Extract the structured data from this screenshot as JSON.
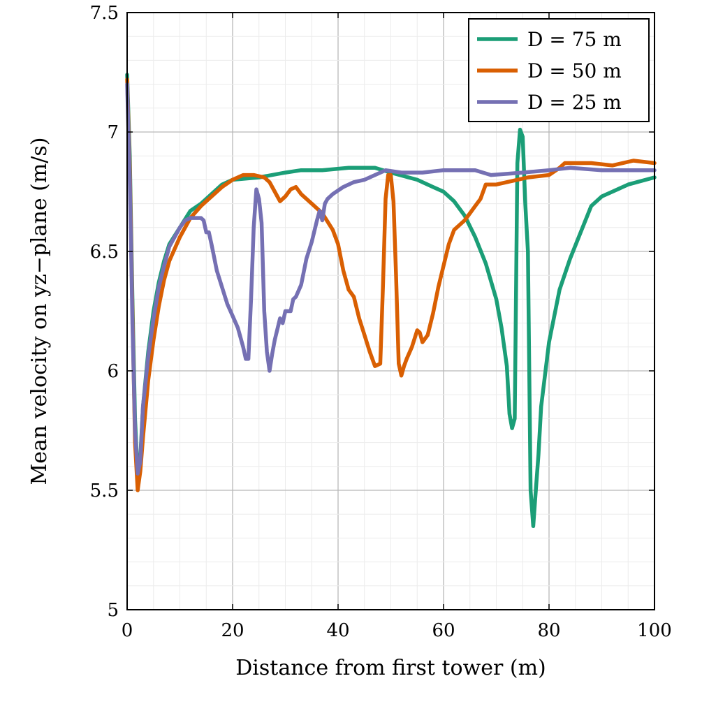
{
  "chart_data": {
    "type": "line",
    "title": "",
    "xlabel": "Distance from first tower (m)",
    "ylabel": "Mean velocity on yz−plane (m/s)",
    "xlim": [
      0,
      100
    ],
    "ylim": [
      5,
      7.5
    ],
    "xticks": [
      0,
      20,
      40,
      60,
      80,
      100
    ],
    "xtick_labels": [
      "0",
      "20",
      "40",
      "60",
      "80",
      "100"
    ],
    "yticks": [
      5,
      5.5,
      6,
      6.5,
      7,
      7.5
    ],
    "ytick_labels": [
      "5",
      "5.5",
      "6",
      "6.5",
      "7",
      "7.5"
    ],
    "grid": true,
    "legend_position": "top-right",
    "series": [
      {
        "name": "D = 75 m",
        "color": "#1b9e77",
        "points": [
          [
            0,
            7.24
          ],
          [
            0.5,
            6.9
          ],
          [
            1,
            6.3
          ],
          [
            1.5,
            5.8
          ],
          [
            2,
            5.56
          ],
          [
            2.5,
            5.64
          ],
          [
            3,
            5.85
          ],
          [
            4,
            6.08
          ],
          [
            5,
            6.25
          ],
          [
            6,
            6.37
          ],
          [
            7,
            6.46
          ],
          [
            8,
            6.53
          ],
          [
            10,
            6.6
          ],
          [
            12,
            6.67
          ],
          [
            14,
            6.7
          ],
          [
            16,
            6.74
          ],
          [
            18,
            6.78
          ],
          [
            20,
            6.8
          ],
          [
            25,
            6.81
          ],
          [
            30,
            6.83
          ],
          [
            33,
            6.84
          ],
          [
            37,
            6.84
          ],
          [
            42,
            6.85
          ],
          [
            47,
            6.85
          ],
          [
            50,
            6.83
          ],
          [
            55,
            6.8
          ],
          [
            58,
            6.77
          ],
          [
            60,
            6.75
          ],
          [
            62,
            6.71
          ],
          [
            64,
            6.65
          ],
          [
            66,
            6.56
          ],
          [
            68,
            6.45
          ],
          [
            70,
            6.3
          ],
          [
            71,
            6.18
          ],
          [
            72,
            6.02
          ],
          [
            72.5,
            5.82
          ],
          [
            73,
            5.76
          ],
          [
            73.5,
            5.8
          ],
          [
            74,
            6.87
          ],
          [
            74.5,
            7.01
          ],
          [
            75,
            6.98
          ],
          [
            75.5,
            6.7
          ],
          [
            76,
            6.5
          ],
          [
            76.5,
            5.5
          ],
          [
            77,
            5.35
          ],
          [
            77.5,
            5.5
          ],
          [
            78,
            5.65
          ],
          [
            78.5,
            5.85
          ],
          [
            80,
            6.12
          ],
          [
            82,
            6.34
          ],
          [
            84,
            6.47
          ],
          [
            86,
            6.58
          ],
          [
            88,
            6.69
          ],
          [
            90,
            6.73
          ],
          [
            92,
            6.75
          ],
          [
            95,
            6.78
          ],
          [
            100,
            6.81
          ]
        ]
      },
      {
        "name": "D = 50 m",
        "color": "#d95f02",
        "points": [
          [
            0,
            7.22
          ],
          [
            0.5,
            6.85
          ],
          [
            1,
            6.25
          ],
          [
            1.5,
            5.7
          ],
          [
            2,
            5.5
          ],
          [
            2.5,
            5.58
          ],
          [
            3,
            5.72
          ],
          [
            4,
            5.96
          ],
          [
            5,
            6.13
          ],
          [
            6,
            6.27
          ],
          [
            7,
            6.38
          ],
          [
            8,
            6.46
          ],
          [
            10,
            6.56
          ],
          [
            12,
            6.64
          ],
          [
            14,
            6.69
          ],
          [
            16,
            6.73
          ],
          [
            18,
            6.77
          ],
          [
            20,
            6.8
          ],
          [
            22,
            6.82
          ],
          [
            24,
            6.82
          ],
          [
            26,
            6.81
          ],
          [
            27,
            6.79
          ],
          [
            28,
            6.75
          ],
          [
            29,
            6.71
          ],
          [
            30,
            6.73
          ],
          [
            31,
            6.76
          ],
          [
            32,
            6.77
          ],
          [
            33,
            6.74
          ],
          [
            35,
            6.7
          ],
          [
            37,
            6.66
          ],
          [
            39,
            6.59
          ],
          [
            40,
            6.53
          ],
          [
            41,
            6.42
          ],
          [
            42,
            6.34
          ],
          [
            43,
            6.31
          ],
          [
            44,
            6.22
          ],
          [
            45,
            6.15
          ],
          [
            46,
            6.08
          ],
          [
            47,
            6.02
          ],
          [
            48,
            6.03
          ],
          [
            48.5,
            6.35
          ],
          [
            49,
            6.72
          ],
          [
            49.5,
            6.82
          ],
          [
            50,
            6.82
          ],
          [
            50.5,
            6.71
          ],
          [
            51,
            6.4
          ],
          [
            51.5,
            6.03
          ],
          [
            52,
            5.98
          ],
          [
            52.5,
            6.02
          ],
          [
            53,
            6.05
          ],
          [
            54,
            6.1
          ],
          [
            55,
            6.17
          ],
          [
            55.5,
            6.16
          ],
          [
            56,
            6.12
          ],
          [
            57,
            6.15
          ],
          [
            58,
            6.24
          ],
          [
            59,
            6.35
          ],
          [
            60,
            6.44
          ],
          [
            61,
            6.53
          ],
          [
            62,
            6.59
          ],
          [
            63,
            6.61
          ],
          [
            64,
            6.63
          ],
          [
            65,
            6.66
          ],
          [
            66,
            6.69
          ],
          [
            67,
            6.72
          ],
          [
            68,
            6.78
          ],
          [
            70,
            6.78
          ],
          [
            72,
            6.79
          ],
          [
            74,
            6.8
          ],
          [
            76,
            6.81
          ],
          [
            80,
            6.82
          ],
          [
            82,
            6.85
          ],
          [
            83,
            6.87
          ],
          [
            88,
            6.87
          ],
          [
            92,
            6.86
          ],
          [
            96,
            6.88
          ],
          [
            100,
            6.87
          ]
        ]
      },
      {
        "name": "D = 25 m",
        "color": "#7570b3",
        "points": [
          [
            0,
            7.2
          ],
          [
            0.5,
            6.8
          ],
          [
            1,
            6.2
          ],
          [
            1.5,
            5.75
          ],
          [
            2,
            5.57
          ],
          [
            2.5,
            5.62
          ],
          [
            3,
            5.85
          ],
          [
            4,
            6.06
          ],
          [
            5,
            6.22
          ],
          [
            6,
            6.35
          ],
          [
            7,
            6.44
          ],
          [
            8,
            6.52
          ],
          [
            10,
            6.6
          ],
          [
            11,
            6.63
          ],
          [
            12,
            6.64
          ],
          [
            14,
            6.64
          ],
          [
            14.5,
            6.63
          ],
          [
            15,
            6.58
          ],
          [
            15.5,
            6.58
          ],
          [
            16,
            6.53
          ],
          [
            17,
            6.42
          ],
          [
            18,
            6.35
          ],
          [
            19,
            6.28
          ],
          [
            20,
            6.23
          ],
          [
            21,
            6.18
          ],
          [
            22,
            6.1
          ],
          [
            22.5,
            6.05
          ],
          [
            23,
            6.05
          ],
          [
            23.5,
            6.3
          ],
          [
            24,
            6.6
          ],
          [
            24.5,
            6.76
          ],
          [
            25,
            6.72
          ],
          [
            25.5,
            6.62
          ],
          [
            26,
            6.25
          ],
          [
            26.5,
            6.08
          ],
          [
            27,
            6.0
          ],
          [
            27.5,
            6.07
          ],
          [
            28,
            6.13
          ],
          [
            29,
            6.22
          ],
          [
            29.5,
            6.2
          ],
          [
            30,
            6.25
          ],
          [
            31,
            6.25
          ],
          [
            31.5,
            6.3
          ],
          [
            32,
            6.31
          ],
          [
            33,
            6.36
          ],
          [
            34,
            6.47
          ],
          [
            35,
            6.54
          ],
          [
            36,
            6.63
          ],
          [
            36.5,
            6.67
          ],
          [
            37,
            6.63
          ],
          [
            37.5,
            6.7
          ],
          [
            38,
            6.72
          ],
          [
            39,
            6.74
          ],
          [
            41,
            6.77
          ],
          [
            43,
            6.79
          ],
          [
            45,
            6.8
          ],
          [
            47,
            6.82
          ],
          [
            49,
            6.84
          ],
          [
            52,
            6.83
          ],
          [
            56,
            6.83
          ],
          [
            60,
            6.84
          ],
          [
            66,
            6.84
          ],
          [
            69,
            6.82
          ],
          [
            75,
            6.83
          ],
          [
            80,
            6.84
          ],
          [
            84,
            6.85
          ],
          [
            90,
            6.84
          ],
          [
            100,
            6.84
          ]
        ]
      }
    ]
  }
}
